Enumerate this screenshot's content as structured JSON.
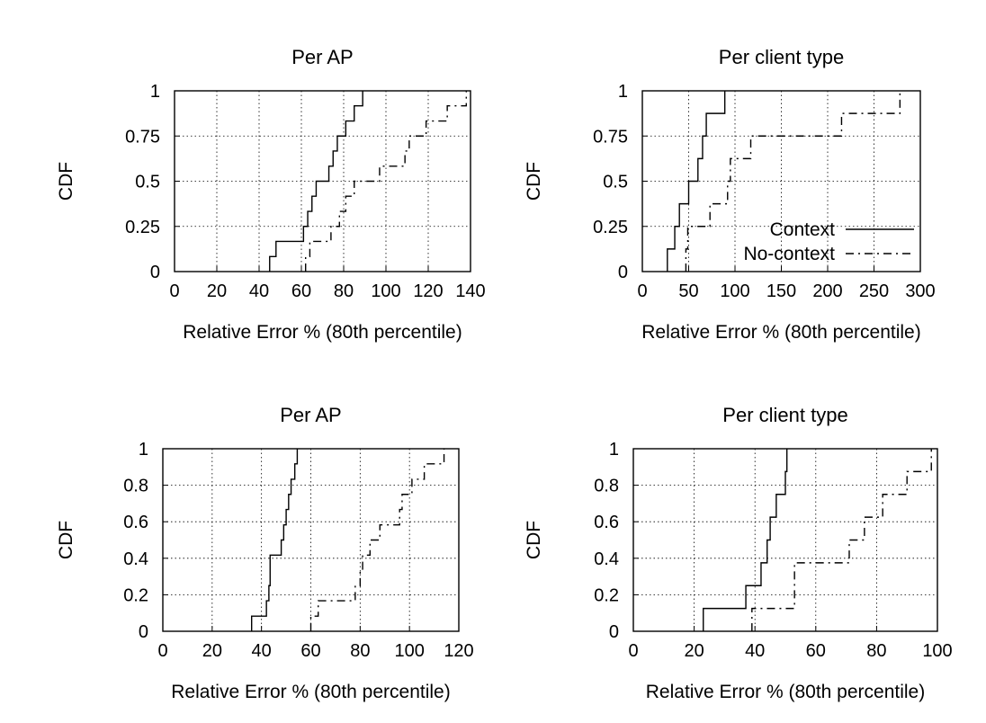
{
  "chart_data": [
    {
      "type": "line",
      "title": "Per AP",
      "xlabel": "Relative Error % (80th percentile)",
      "ylabel": "CDF",
      "xlim": [
        0,
        140
      ],
      "ylim": [
        0,
        1
      ],
      "xticks": [
        0,
        20,
        40,
        60,
        80,
        100,
        120,
        140
      ],
      "yticks": [
        0,
        0.25,
        0.5,
        0.75,
        1
      ],
      "ytick_labels": [
        "0",
        "0.25",
        "0.5",
        "0.75",
        "1"
      ],
      "grid": true,
      "legend": null,
      "series": [
        {
          "name": "Context",
          "style": "solid",
          "x": [
            45,
            48,
            61,
            63,
            65,
            67,
            73,
            75,
            77,
            81,
            85,
            88,
            89
          ],
          "y": [
            0.083,
            0.167,
            0.25,
            0.333,
            0.417,
            0.5,
            0.583,
            0.667,
            0.75,
            0.833,
            0.917,
            0.917,
            1.0
          ]
        },
        {
          "name": "No-context",
          "style": "dashdot",
          "x": [
            62,
            64,
            74,
            78,
            81,
            85,
            97,
            98,
            109,
            111,
            119,
            129,
            138
          ],
          "y": [
            0.083,
            0.167,
            0.25,
            0.333,
            0.417,
            0.5,
            0.583,
            0.583,
            0.667,
            0.75,
            0.833,
            0.917,
            1.0
          ]
        }
      ]
    },
    {
      "type": "line",
      "title": "Per client type",
      "xlabel": "Relative Error % (80th percentile)",
      "ylabel": "CDF",
      "xlim": [
        0,
        300
      ],
      "ylim": [
        0,
        1
      ],
      "xticks": [
        0,
        50,
        100,
        150,
        200,
        250,
        300
      ],
      "yticks": [
        0,
        0.25,
        0.5,
        0.75,
        1
      ],
      "ytick_labels": [
        "0",
        "0.25",
        "0.5",
        "0.75",
        "1"
      ],
      "grid": true,
      "legend": "center-right",
      "series": [
        {
          "name": "Context",
          "style": "solid",
          "x": [
            27,
            35,
            40,
            50,
            60,
            65,
            69,
            89
          ],
          "y": [
            0.125,
            0.25,
            0.375,
            0.5,
            0.625,
            0.75,
            0.875,
            1.0
          ]
        },
        {
          "name": "No-context",
          "style": "dashdot",
          "x": [
            47,
            49,
            73,
            92,
            95,
            117,
            215,
            278
          ],
          "y": [
            0.125,
            0.25,
            0.375,
            0.5,
            0.625,
            0.75,
            0.875,
            1.0
          ]
        }
      ]
    },
    {
      "type": "line",
      "title": "Per AP",
      "xlabel": "Relative Error % (80th percentile)",
      "ylabel": "CDF",
      "xlim": [
        0,
        120
      ],
      "ylim": [
        0,
        1
      ],
      "xticks": [
        0,
        20,
        40,
        60,
        80,
        100,
        120
      ],
      "yticks": [
        0,
        0.2,
        0.4,
        0.6,
        0.8,
        1
      ],
      "ytick_labels": [
        "0",
        "0.2",
        "0.4",
        "0.6",
        "0.8",
        "1"
      ],
      "grid": true,
      "legend": null,
      "series": [
        {
          "name": "Context",
          "style": "solid",
          "x": [
            36,
            42,
            43,
            43.5,
            48,
            49,
            50,
            51,
            52,
            53,
            53.5,
            54.5
          ],
          "y": [
            0.083,
            0.167,
            0.25,
            0.417,
            0.5,
            0.583,
            0.667,
            0.75,
            0.833,
            0.833,
            0.917,
            1.0
          ]
        },
        {
          "name": "No-context",
          "style": "dashdot",
          "x": [
            60,
            63,
            78,
            80,
            81,
            84,
            88,
            96,
            97,
            101,
            106,
            114
          ],
          "y": [
            0.083,
            0.167,
            0.25,
            0.333,
            0.417,
            0.5,
            0.583,
            0.667,
            0.75,
            0.833,
            0.917,
            1.0
          ]
        }
      ]
    },
    {
      "type": "line",
      "title": "Per client type",
      "xlabel": "Relative Error % (80th percentile)",
      "ylabel": "CDF",
      "xlim": [
        0,
        100
      ],
      "ylim": [
        0,
        1
      ],
      "xticks": [
        0,
        20,
        40,
        60,
        80,
        100
      ],
      "yticks": [
        0,
        0.2,
        0.4,
        0.6,
        0.8,
        1
      ],
      "ytick_labels": [
        "0",
        "0.2",
        "0.4",
        "0.6",
        "0.8",
        "1"
      ],
      "grid": true,
      "legend": null,
      "series": [
        {
          "name": "Context",
          "style": "solid",
          "x": [
            23,
            37,
            42,
            44,
            45,
            47,
            50,
            50.5
          ],
          "y": [
            0.125,
            0.25,
            0.375,
            0.5,
            0.625,
            0.75,
            0.875,
            1.0
          ]
        },
        {
          "name": "No-context",
          "style": "dashdot",
          "x": [
            39,
            53,
            71,
            76,
            82,
            90,
            98
          ],
          "y": [
            0.125,
            0.375,
            0.5,
            0.625,
            0.75,
            0.875,
            1.0
          ]
        }
      ]
    }
  ]
}
